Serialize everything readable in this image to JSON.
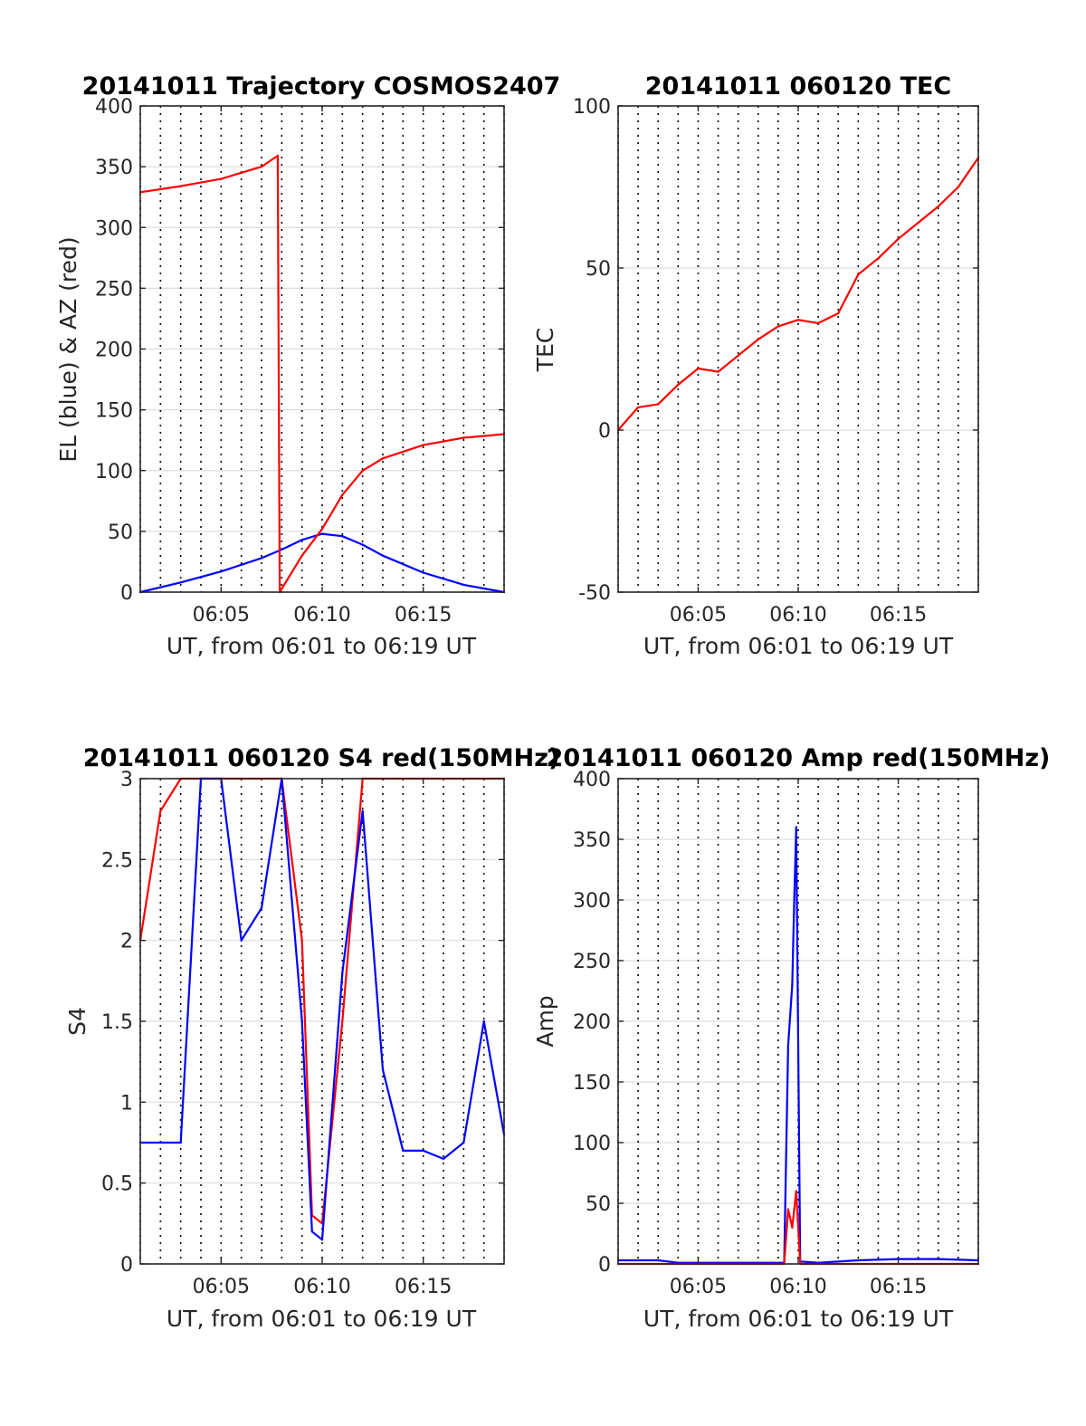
{
  "chart_data": [
    {
      "type": "line",
      "title": "20141011 Trajectory COSMOS2407",
      "xlabel": "UT, from 06:01 to 06:19 UT",
      "ylabel": "EL (blue) & AZ (red)",
      "xlim": [
        "06:01",
        "06:19"
      ],
      "ylim": [
        0,
        400
      ],
      "x_ticks": [
        "06:05",
        "06:10",
        "06:15"
      ],
      "y_ticks": [
        "0",
        "50",
        "100",
        "150",
        "200",
        "250",
        "300",
        "350",
        "400"
      ],
      "grid": true,
      "series": [
        {
          "color": "#0000ff",
          "x": [
            "06:01",
            "06:03",
            "06:05",
            "06:07",
            "06:08",
            "06:09",
            "06:10",
            "06:11",
            "06:12",
            "06:13",
            "06:15",
            "06:17",
            "06:19"
          ],
          "values": [
            0,
            8,
            17,
            28,
            35,
            43,
            48,
            46,
            39,
            30,
            16,
            6,
            0
          ]
        },
        {
          "color": "#ff0000",
          "x": [
            "06:01",
            "06:03",
            "06:05",
            "06:06",
            "06:07",
            "06:07.8",
            "06:07.9",
            "06:09",
            "06:10",
            "06:11",
            "06:12",
            "06:13",
            "06:15",
            "06:17",
            "06:19"
          ],
          "values": [
            329,
            334,
            340,
            345,
            350,
            359,
            0,
            30,
            52,
            80,
            100,
            110,
            121,
            127,
            130
          ]
        }
      ]
    },
    {
      "type": "line",
      "title": "20141011 060120 TEC",
      "xlabel": "UT, from 06:01 to 06:19 UT",
      "ylabel": "TEC",
      "xlim": [
        "06:01",
        "06:19"
      ],
      "ylim": [
        -50,
        100
      ],
      "x_ticks": [
        "06:05",
        "06:10",
        "06:15"
      ],
      "y_ticks": [
        "-50",
        "0",
        "50",
        "100"
      ],
      "grid": true,
      "series": [
        {
          "color": "#ff0000",
          "x": [
            "06:01",
            "06:02",
            "06:03",
            "06:04",
            "06:05",
            "06:06",
            "06:07",
            "06:08",
            "06:09",
            "06:10",
            "06:11",
            "06:12",
            "06:13",
            "06:14",
            "06:15",
            "06:16",
            "06:17",
            "06:18",
            "06:19"
          ],
          "values": [
            0,
            7,
            8,
            14,
            19,
            18,
            23,
            28,
            32,
            34,
            33,
            36,
            48,
            53,
            59,
            64,
            69,
            75,
            84
          ]
        }
      ]
    },
    {
      "type": "line",
      "title": "20141011 060120 S4 red(150MHz)",
      "xlabel": "UT, from 06:01 to 06:19 UT",
      "ylabel": "S4",
      "xlim": [
        "06:01",
        "06:19"
      ],
      "ylim": [
        0,
        3
      ],
      "x_ticks": [
        "06:05",
        "06:10",
        "06:15"
      ],
      "y_ticks": [
        "0",
        "0.5",
        "1",
        "1.5",
        "2",
        "2.5",
        "3"
      ],
      "grid": true,
      "series": [
        {
          "color": "#ff0000",
          "x": [
            "06:01",
            "06:02",
            "06:03",
            "06:04",
            "06:05",
            "06:06",
            "06:07",
            "06:08",
            "06:09",
            "06:09.5",
            "06:10",
            "06:11",
            "06:12",
            "06:13",
            "06:14",
            "06:15",
            "06:16",
            "06:17",
            "06:18",
            "06:19"
          ],
          "values": [
            2.0,
            2.8,
            3.0,
            3.0,
            3.0,
            3.0,
            3.0,
            3.0,
            2.0,
            0.3,
            0.25,
            1.5,
            3.0,
            3.0,
            3.0,
            3.0,
            3.0,
            3.0,
            3.0,
            3.0
          ]
        },
        {
          "color": "#0000ff",
          "x": [
            "06:01",
            "06:02",
            "06:03",
            "06:04",
            "06:05",
            "06:06",
            "06:07",
            "06:08",
            "06:09",
            "06:09.5",
            "06:10",
            "06:11",
            "06:12",
            "06:13",
            "06:14",
            "06:15",
            "06:16",
            "06:17",
            "06:18",
            "06:19"
          ],
          "values": [
            0.75,
            0.75,
            0.75,
            3.0,
            3.0,
            2.0,
            2.2,
            3.0,
            1.5,
            0.2,
            0.15,
            1.8,
            2.8,
            1.2,
            0.7,
            0.7,
            0.65,
            0.75,
            1.5,
            0.8
          ]
        }
      ]
    },
    {
      "type": "line",
      "title": "20141011 060120 Amp red(150MHz)",
      "xlabel": "UT, from 06:01 to 06:19 UT",
      "ylabel": "Amp",
      "xlim": [
        "06:01",
        "06:19"
      ],
      "ylim": [
        0,
        400
      ],
      "x_ticks": [
        "06:05",
        "06:10",
        "06:15"
      ],
      "y_ticks": [
        "0",
        "50",
        "100",
        "150",
        "200",
        "250",
        "300",
        "350",
        "400"
      ],
      "grid": true,
      "series": [
        {
          "color": "#0000ff",
          "x": [
            "06:01",
            "06:03",
            "06:04",
            "06:06",
            "06:08",
            "06:09.3",
            "06:09.5",
            "06:09.7",
            "06:09.8",
            "06:09.9",
            "06:10.1",
            "06:11",
            "06:13",
            "06:15",
            "06:17",
            "06:19"
          ],
          "values": [
            3,
            3,
            1,
            1,
            1,
            1,
            180,
            230,
            300,
            360,
            2,
            1,
            3,
            4,
            4,
            3
          ]
        },
        {
          "color": "#ff0000",
          "x": [
            "06:01",
            "06:09.3",
            "06:09.5",
            "06:09.7",
            "06:09.9",
            "06:10.1",
            "06:19"
          ],
          "values": [
            0,
            0,
            45,
            30,
            60,
            0,
            0
          ]
        }
      ]
    }
  ]
}
